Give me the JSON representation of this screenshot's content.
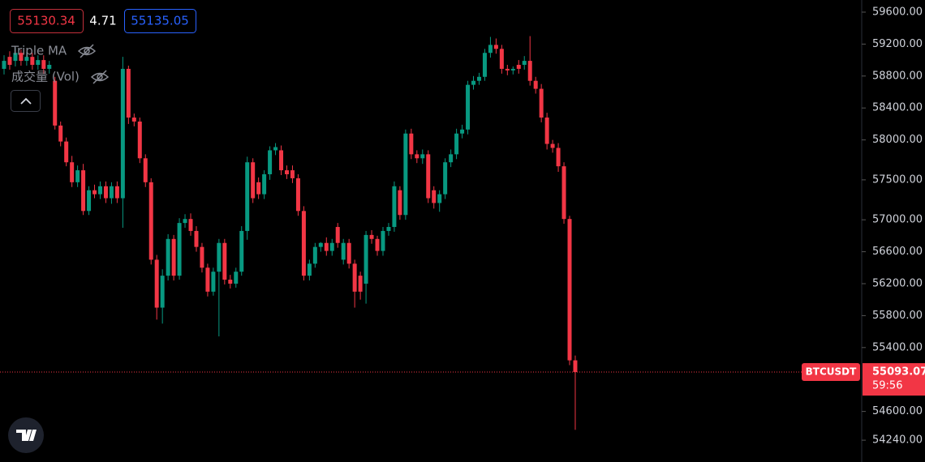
{
  "header": {
    "bid": 55130.34,
    "spread": 4.71,
    "ask": 55135.05,
    "indicator_1": "Triple MA",
    "indicator_2": "成交量 (Vol)"
  },
  "chart_data": {
    "type": "candlestick",
    "symbol": "BTCUSDT",
    "last_price": 55093.07,
    "countdown": "59:56",
    "up_color": "#089981",
    "down_color": "#f23645",
    "ylim": [
      53967,
      59752
    ],
    "yticks": [
      {
        "value": 59600,
        "label": "59600.00"
      },
      {
        "value": 59200,
        "label": "59200.00"
      },
      {
        "value": 58800,
        "label": "58800.00"
      },
      {
        "value": 58400,
        "label": "58400.00"
      },
      {
        "value": 58000,
        "label": "58000.00"
      },
      {
        "value": 57500,
        "label": "57500.00"
      },
      {
        "value": 57000,
        "label": "57000.00"
      },
      {
        "value": 56600,
        "label": "56600.00"
      },
      {
        "value": 56200,
        "label": "56200.00"
      },
      {
        "value": 55800,
        "label": "55800.00"
      },
      {
        "value": 55400,
        "label": "55400.00"
      },
      {
        "value": 54600,
        "label": "54600.00"
      },
      {
        "value": 54240,
        "label": "54240.00"
      }
    ],
    "open": [
      58890,
      59040,
      58990,
      59090,
      58990,
      59040,
      58940,
      59000,
      58890,
      58740,
      58180,
      57980,
      57720,
      57470,
      57620,
      57110,
      57370,
      57320,
      57420,
      57270,
      57420,
      57270,
      58890,
      58280,
      58230,
      57770,
      57470,
      56500,
      55900,
      56300,
      56760,
      56300,
      56960,
      57010,
      56860,
      56660,
      56400,
      56100,
      56350,
      56710,
      56250,
      56200,
      56350,
      56860,
      57720,
      57470,
      57320,
      57570,
      57870,
      57870,
      57620,
      57620,
      57520,
      57110,
      56300,
      56450,
      56660,
      56710,
      56610,
      56910,
      56500,
      56710,
      56450,
      56300,
      56200,
      56810,
      56760,
      56610,
      56860,
      56910,
      57370,
      57060,
      58080,
      57820,
      57770,
      57820,
      57370,
      57210,
      57320,
      57720,
      57820,
      58080,
      58130,
      58690,
      58740,
      58790,
      59090,
      59190,
      59140,
      58890,
      58870,
      58940,
      58940,
      58990,
      58740,
      58640,
      58280,
      57950,
      57900,
      57670,
      57010,
      55240
    ],
    "high": [
      59060,
      59110,
      59150,
      59130,
      59100,
      59090,
      59060,
      59060,
      58990,
      58790,
      58230,
      58030,
      57800,
      57680,
      57700,
      57420,
      57440,
      57480,
      57480,
      57470,
      57480,
      59040,
      58930,
      58330,
      58280,
      57820,
      57520,
      56560,
      56380,
      56820,
      56810,
      57020,
      57070,
      57080,
      56920,
      56710,
      56450,
      56400,
      56760,
      56760,
      56310,
      56400,
      56920,
      57790,
      57770,
      57530,
      57620,
      57920,
      57960,
      57930,
      57680,
      57680,
      57570,
      57170,
      56500,
      56710,
      56720,
      56780,
      56760,
      56960,
      56760,
      56760,
      56500,
      56350,
      56860,
      56870,
      56800,
      56910,
      56960,
      57480,
      57420,
      58130,
      58140,
      57870,
      57880,
      57870,
      57420,
      57370,
      57770,
      57880,
      58140,
      58190,
      58740,
      58800,
      58840,
      59140,
      59290,
      59270,
      59190,
      58940,
      58920,
      59000,
      59050,
      59300,
      58790,
      58700,
      58340,
      58000,
      57960,
      57720,
      57050,
      55300
    ],
    "low": [
      58820,
      58880,
      58920,
      58930,
      58930,
      58880,
      58880,
      58830,
      58830,
      58130,
      57920,
      57670,
      57410,
      57410,
      57060,
      57060,
      57270,
      57260,
      57210,
      57200,
      57210,
      56900,
      58200,
      58170,
      57710,
      57410,
      56440,
      55750,
      55700,
      56240,
      56240,
      56250,
      56900,
      56800,
      56600,
      56340,
      56040,
      56050,
      55540,
      56190,
      56140,
      56150,
      56300,
      56750,
      57210,
      57260,
      57260,
      57500,
      57810,
      57560,
      57510,
      57460,
      57050,
      56240,
      56240,
      56400,
      56600,
      56550,
      56550,
      56650,
      56440,
      56390,
      55900,
      56000,
      55950,
      56700,
      56550,
      56550,
      56800,
      56850,
      57000,
      57000,
      57760,
      57710,
      57700,
      57210,
      57140,
      57100,
      57260,
      57660,
      57760,
      58020,
      58070,
      58630,
      58690,
      58740,
      59030,
      59080,
      58830,
      58810,
      58820,
      58830,
      58880,
      58680,
      58580,
      58220,
      57880,
      57840,
      57600,
      56950,
      55180,
      54370
    ],
    "close": [
      58990,
      58940,
      59090,
      58990,
      59040,
      58940,
      59000,
      58890,
      58940,
      58180,
      57980,
      57720,
      57470,
      57620,
      57110,
      57370,
      57320,
      57420,
      57270,
      57420,
      57270,
      58890,
      58280,
      58230,
      57770,
      57470,
      56500,
      55900,
      56300,
      56760,
      56300,
      56960,
      57010,
      56860,
      56660,
      56400,
      56100,
      56350,
      56710,
      56250,
      56200,
      56350,
      56860,
      57720,
      57270,
      57320,
      57570,
      57870,
      57910,
      57620,
      57570,
      57520,
      57110,
      56300,
      56450,
      56660,
      56710,
      56610,
      56710,
      56710,
      56710,
      56450,
      56100,
      56100,
      56810,
      56760,
      56610,
      56860,
      56910,
      57420,
      57060,
      58080,
      57820,
      57770,
      57820,
      57270,
      57210,
      57320,
      57720,
      57820,
      58080,
      58130,
      58690,
      58740,
      58790,
      59090,
      59190,
      59140,
      58890,
      58870,
      58890,
      58890,
      58990,
      58740,
      58640,
      58280,
      57950,
      57900,
      57670,
      57010,
      55240,
      55093.07
    ]
  }
}
